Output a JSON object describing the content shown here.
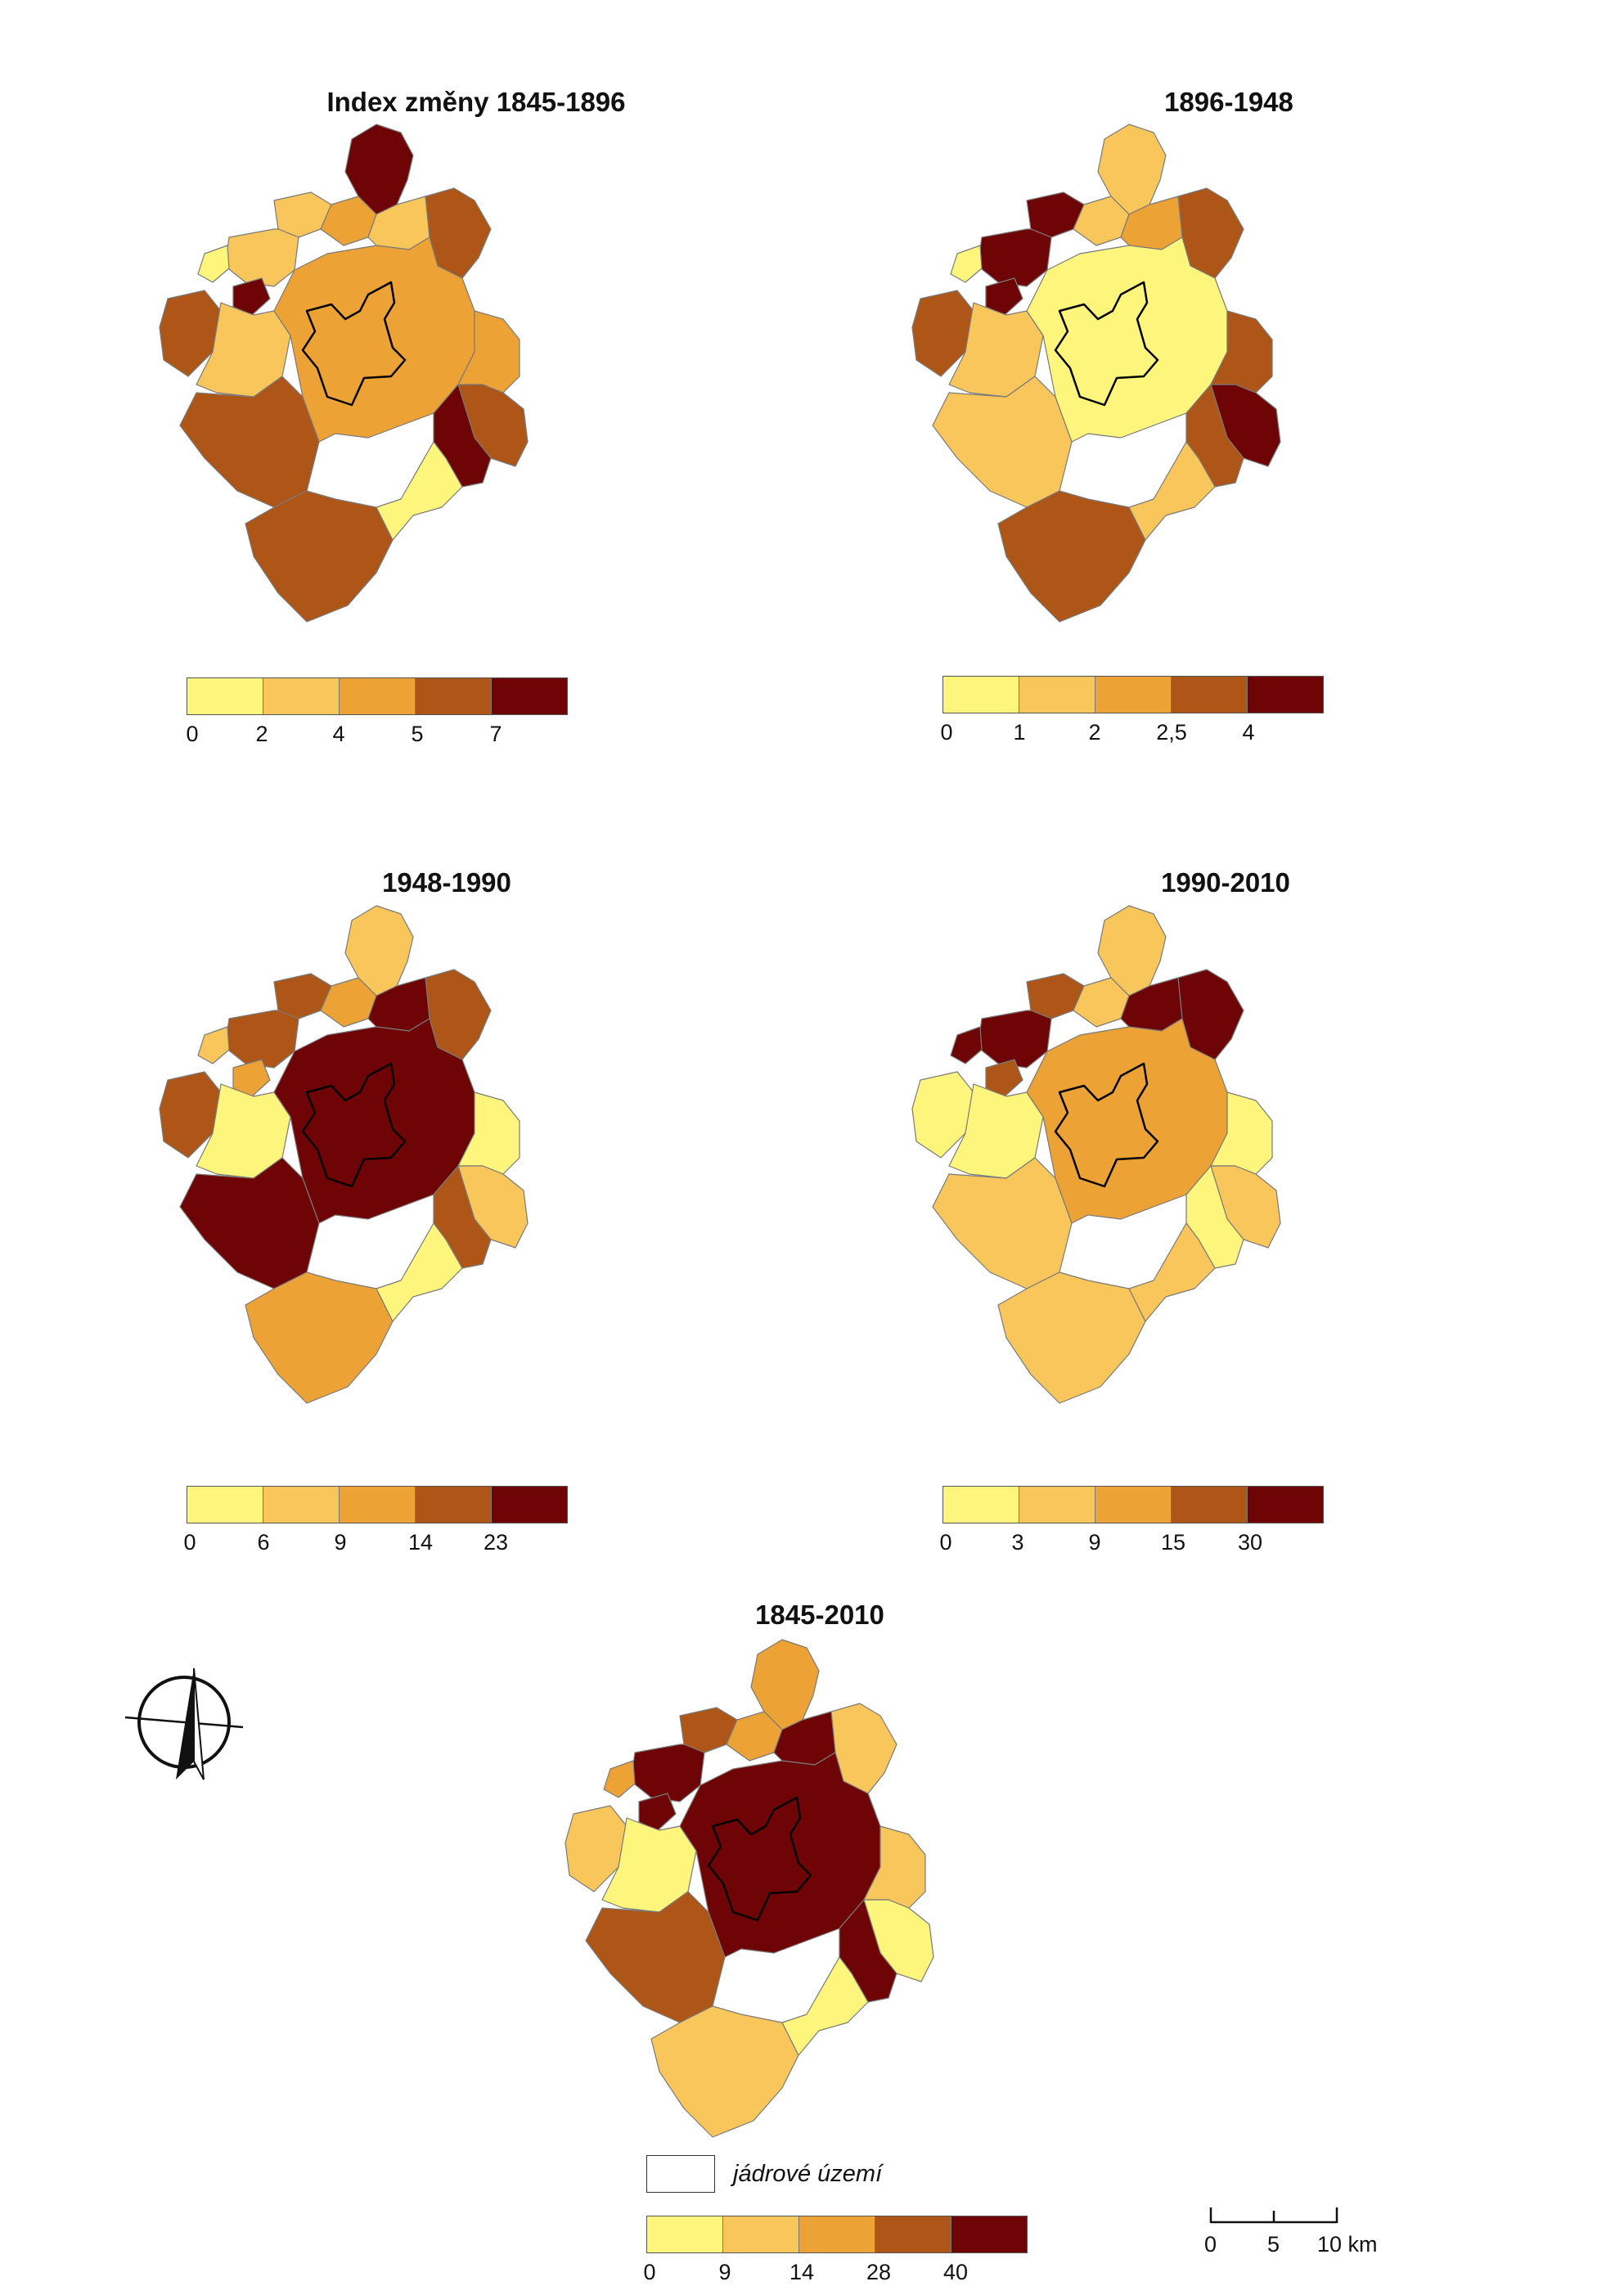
{
  "colors": {
    "c1": "#fdf57c",
    "c2": "#f8c65a",
    "c3": "#eca235",
    "c4": "#ae5618",
    "c5": "#6e0405",
    "border": "#7a7a7a",
    "core": "#000000"
  },
  "maps": [
    {
      "title": "Index změny 1845-1896",
      "legend": [
        "0",
        "2",
        "4",
        "5",
        "7"
      ],
      "regions": {
        "north": "c5",
        "ne": "c4",
        "e": "c3",
        "se": "c4",
        "se_strip": "c5",
        "se_small": "c1",
        "s": "c4",
        "sw": "c4",
        "w": "c2",
        "w_far": "c4",
        "nw": "c2",
        "nw_small1": "c1",
        "nw_small2": "c5",
        "n_ring1": "c2",
        "n_ring2": "c3",
        "n_ring3": "c2",
        "center": "c3",
        "core": "c3"
      }
    },
    {
      "title": "1896-1948",
      "legend": [
        "0",
        "1",
        "2",
        "2,5",
        "4"
      ],
      "regions": {
        "north": "c2",
        "ne": "c4",
        "e": "c4",
        "se": "c5",
        "se_strip": "c4",
        "se_small": "c2",
        "s": "c4",
        "sw": "c2",
        "w": "c2",
        "w_far": "c4",
        "nw": "c5",
        "nw_small1": "c1",
        "nw_small2": "c5",
        "n_ring1": "c5",
        "n_ring2": "c2",
        "n_ring3": "c3",
        "center": "c1",
        "core": "c1"
      }
    },
    {
      "title": "1948-1990",
      "legend": [
        "0",
        "6",
        "9",
        "14",
        "23"
      ],
      "regions": {
        "north": "c2",
        "ne": "c4",
        "e": "c1",
        "se": "c2",
        "se_strip": "c4",
        "se_small": "c1",
        "s": "c3",
        "sw": "c5",
        "w": "c1",
        "w_far": "c4",
        "nw": "c4",
        "nw_small1": "c2",
        "nw_small2": "c3",
        "n_ring1": "c4",
        "n_ring2": "c3",
        "n_ring3": "c5",
        "center": "c5",
        "core": "c5"
      }
    },
    {
      "title": "1990-2010",
      "legend": [
        "0",
        "3",
        "9",
        "15",
        "30"
      ],
      "regions": {
        "north": "c2",
        "ne": "c5",
        "e": "c1",
        "se": "c2",
        "se_strip": "c1",
        "se_small": "c2",
        "s": "c2",
        "sw": "c2",
        "w": "c1",
        "w_far": "c1",
        "nw": "c5",
        "nw_small1": "c5",
        "nw_small2": "c4",
        "n_ring1": "c4",
        "n_ring2": "c2",
        "n_ring3": "c5",
        "center": "c3",
        "core": "c3"
      }
    },
    {
      "title": "1845-2010",
      "legend": [
        "0",
        "9",
        "14",
        "28",
        "40"
      ],
      "regions": {
        "north": "c3",
        "ne": "c2",
        "e": "c2",
        "se": "c1",
        "se_strip": "c5",
        "se_small": "c1",
        "s": "c2",
        "sw": "c4",
        "w": "c1",
        "w_far": "c2",
        "nw": "c5",
        "nw_small1": "c3",
        "nw_small2": "c5",
        "n_ring1": "c4",
        "n_ring2": "c3",
        "n_ring3": "c5",
        "center": "c5",
        "core": "c5"
      }
    }
  ],
  "core_legend_label": "jádrové území",
  "scale": {
    "labels": [
      "0",
      "5",
      "10 km"
    ]
  }
}
